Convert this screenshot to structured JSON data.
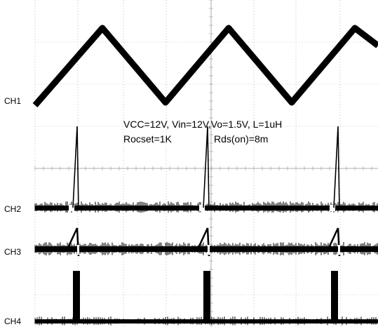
{
  "chart_data": {
    "type": "line",
    "annotations": [
      "VCC=12V, Vin=12V,Vo=1.5V, L=1uH",
      "Rocset=1K",
      "Rds(on)=8m"
    ],
    "channels": [
      {
        "name": "CH1",
        "waveform": "triangle"
      },
      {
        "name": "CH2",
        "waveform": "spike"
      },
      {
        "name": "CH3",
        "waveform": "ramp"
      },
      {
        "name": "CH4",
        "waveform": "pulse"
      }
    ],
    "periods": 3,
    "grid": true,
    "colors": {
      "trace": "#000000",
      "grid": "#9a9a9a"
    }
  }
}
